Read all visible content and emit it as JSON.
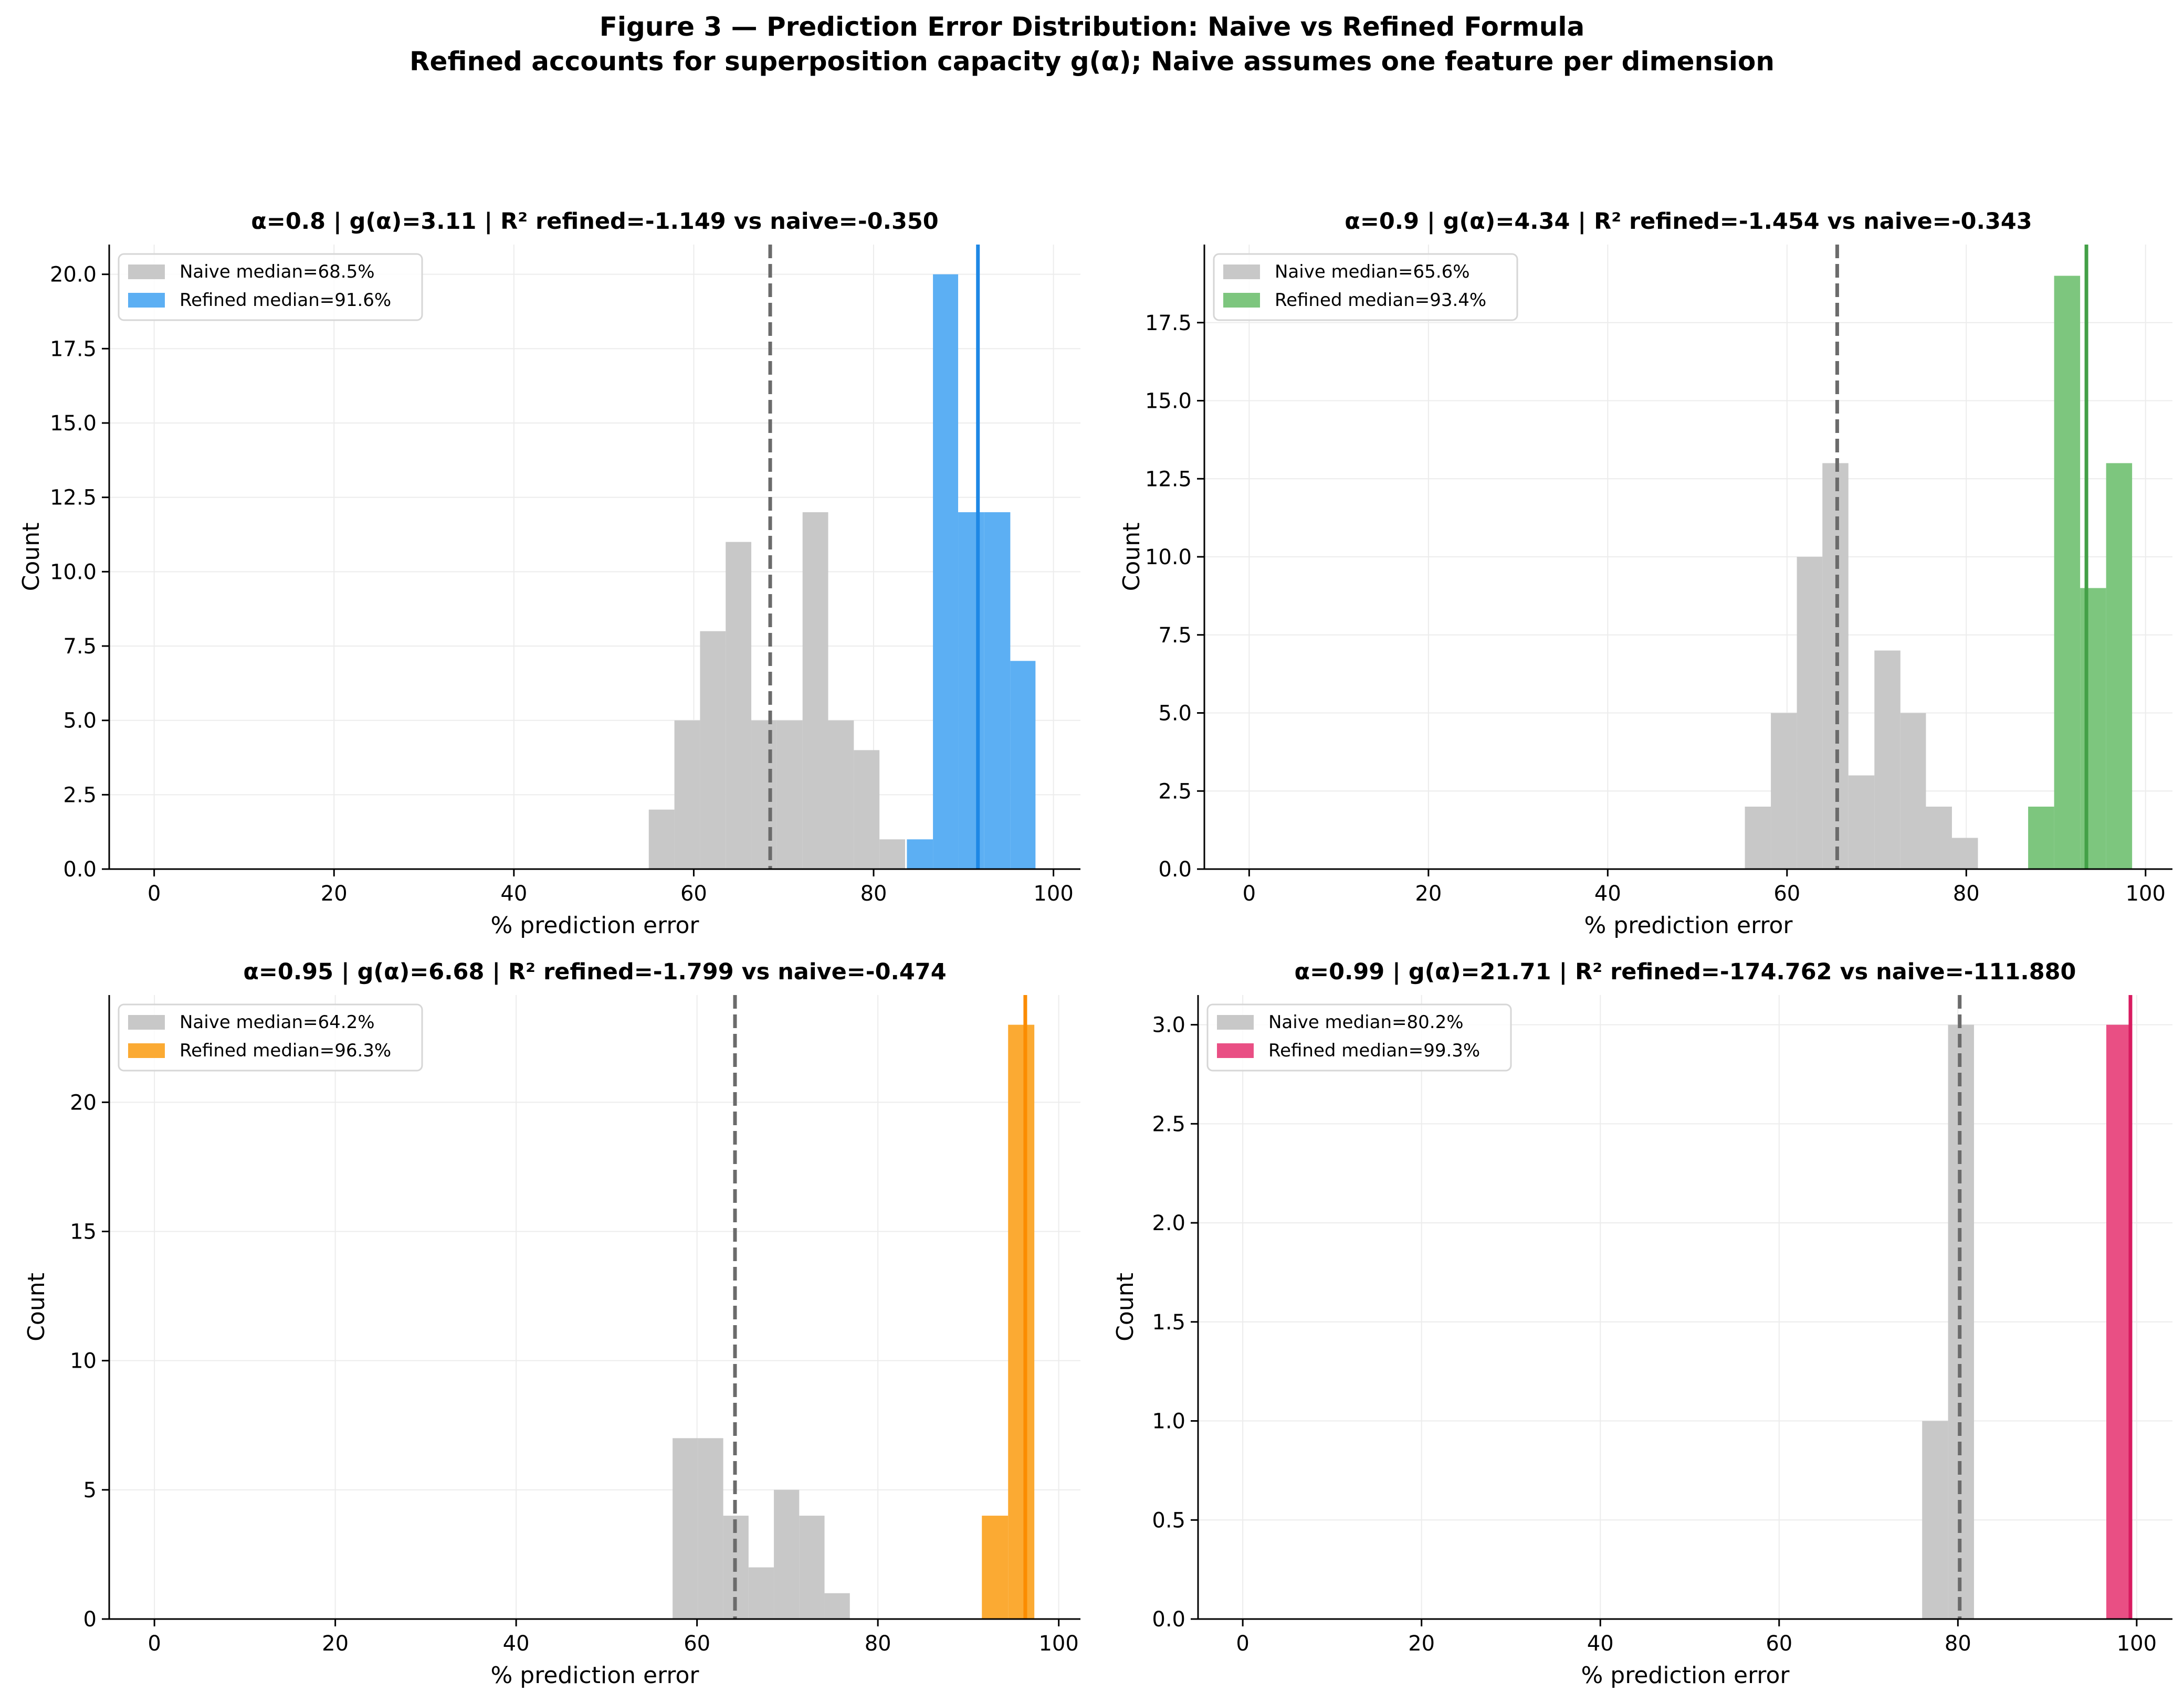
{
  "figure": {
    "title_line1": "Figure 3 — Prediction Error Distribution: Naive vs Refined Formula",
    "title_line2": "Refined accounts for superposition capacity g(α); Naive assumes one feature per dimension"
  },
  "colors": {
    "naive": "#c8c8c8",
    "median_line": "#6b6b6b",
    "grid": "#ececec"
  },
  "chart_data": [
    {
      "type": "bar",
      "title": "α=0.8  |  g(α)=3.11  |  R² refined=-1.149 vs naive=-0.350",
      "xlabel": "% prediction error",
      "ylabel": "Count",
      "xlim": [
        -5,
        103
      ],
      "ylim": [
        0,
        21
      ],
      "xticks": [
        0,
        20,
        40,
        60,
        80,
        100
      ],
      "yticks": [
        0.0,
        2.5,
        5.0,
        7.5,
        10.0,
        12.5,
        15.0,
        17.5,
        20.0
      ],
      "ytick_labels": [
        "0.0",
        "2.5",
        "5.0",
        "7.5",
        "10.0",
        "12.5",
        "15.0",
        "17.5",
        "20.0"
      ],
      "legend_position": "upper-left",
      "series": [
        {
          "name": "Naive  median=68.5%",
          "color": "#c8c8c8",
          "median": 68.5,
          "bin_edges": [
            55.0,
            57.85,
            60.7,
            63.55,
            66.4,
            69.25,
            72.1,
            74.95,
            77.8,
            80.65,
            83.5
          ],
          "counts": [
            2,
            5,
            8,
            11,
            5,
            5,
            12,
            5,
            4,
            1
          ]
        },
        {
          "name": "Refined median=91.6%",
          "color": "#5caff3",
          "line_color": "#1e88e5",
          "median": 91.6,
          "bin_edges": [
            83.7,
            86.6,
            89.4,
            92.3,
            95.2,
            98.0
          ],
          "counts": [
            1,
            20,
            12,
            12,
            7
          ]
        }
      ]
    },
    {
      "type": "bar",
      "title": "α=0.9  |  g(α)=4.34  |  R² refined=-1.454 vs naive=-0.343",
      "xlabel": "% prediction error",
      "ylabel": "Count",
      "xlim": [
        -5,
        103
      ],
      "ylim": [
        0,
        20
      ],
      "xticks": [
        0,
        20,
        40,
        60,
        80,
        100
      ],
      "yticks": [
        0.0,
        2.5,
        5.0,
        7.5,
        10.0,
        12.5,
        15.0,
        17.5
      ],
      "ytick_labels": [
        "0.0",
        "2.5",
        "5.0",
        "7.5",
        "10.0",
        "12.5",
        "15.0",
        "17.5"
      ],
      "legend_position": "upper-left",
      "series": [
        {
          "name": "Naive  median=65.6%",
          "color": "#c8c8c8",
          "median": 65.6,
          "bin_edges": [
            55.3,
            58.2,
            61.1,
            63.95,
            66.85,
            69.75,
            72.65,
            75.5,
            78.4,
            81.3
          ],
          "counts": [
            2,
            5,
            10,
            13,
            3,
            7,
            5,
            2,
            1
          ]
        },
        {
          "name": "Refined median=93.4%",
          "color": "#7dc67e",
          "line_color": "#43a047",
          "median": 93.4,
          "bin_edges": [
            86.9,
            89.8,
            92.7,
            95.6,
            98.5
          ],
          "counts": [
            2,
            19,
            9,
            13
          ]
        }
      ]
    },
    {
      "type": "bar",
      "title": "α=0.95  |  g(α)=6.68  |  R² refined=-1.799 vs naive=-0.474",
      "xlabel": "% prediction error",
      "ylabel": "Count",
      "xlim": [
        -5,
        102.4
      ],
      "ylim": [
        0,
        24.15
      ],
      "xticks": [
        0,
        20,
        40,
        60,
        80,
        100
      ],
      "yticks": [
        0,
        5,
        10,
        15,
        20
      ],
      "ytick_labels": [
        "0",
        "5",
        "10",
        "15",
        "20"
      ],
      "legend_position": "upper-left",
      "series": [
        {
          "name": "Naive  median=64.2%",
          "color": "#c8c8c8",
          "median": 64.2,
          "bin_edges": [
            57.3,
            60.1,
            62.9,
            65.7,
            68.5,
            71.3,
            74.1,
            76.9
          ],
          "counts": [
            7,
            7,
            4,
            2,
            5,
            4,
            1
          ]
        },
        {
          "name": "Refined median=96.3%",
          "color": "#fbaa33",
          "line_color": "#fb8c00",
          "median": 96.3,
          "bin_edges": [
            91.5,
            94.4,
            97.3
          ],
          "counts": [
            4,
            23
          ]
        }
      ]
    },
    {
      "type": "bar",
      "title": "α=0.99  |  g(α)=21.71  |  R² refined=-174.762 vs naive=-111.880",
      "xlabel": "% prediction error",
      "ylabel": "Count",
      "xlim": [
        -5,
        104
      ],
      "ylim": [
        0,
        3.15
      ],
      "xticks": [
        0,
        20,
        40,
        60,
        80,
        100
      ],
      "yticks": [
        0.0,
        0.5,
        1.0,
        1.5,
        2.0,
        2.5,
        3.0
      ],
      "ytick_labels": [
        "0.0",
        "0.5",
        "1.0",
        "1.5",
        "2.0",
        "2.5",
        "3.0"
      ],
      "legend_position": "upper-left",
      "series": [
        {
          "name": "Naive  median=80.2%",
          "color": "#c8c8c8",
          "median": 80.2,
          "bin_edges": [
            76.0,
            78.9,
            81.8
          ],
          "counts": [
            1,
            3
          ]
        },
        {
          "name": "Refined median=99.3%",
          "color": "#e94f84",
          "line_color": "#d81b60",
          "median": 99.3,
          "bin_edges": [
            96.6,
            99.5
          ],
          "counts": [
            3
          ]
        }
      ]
    }
  ]
}
